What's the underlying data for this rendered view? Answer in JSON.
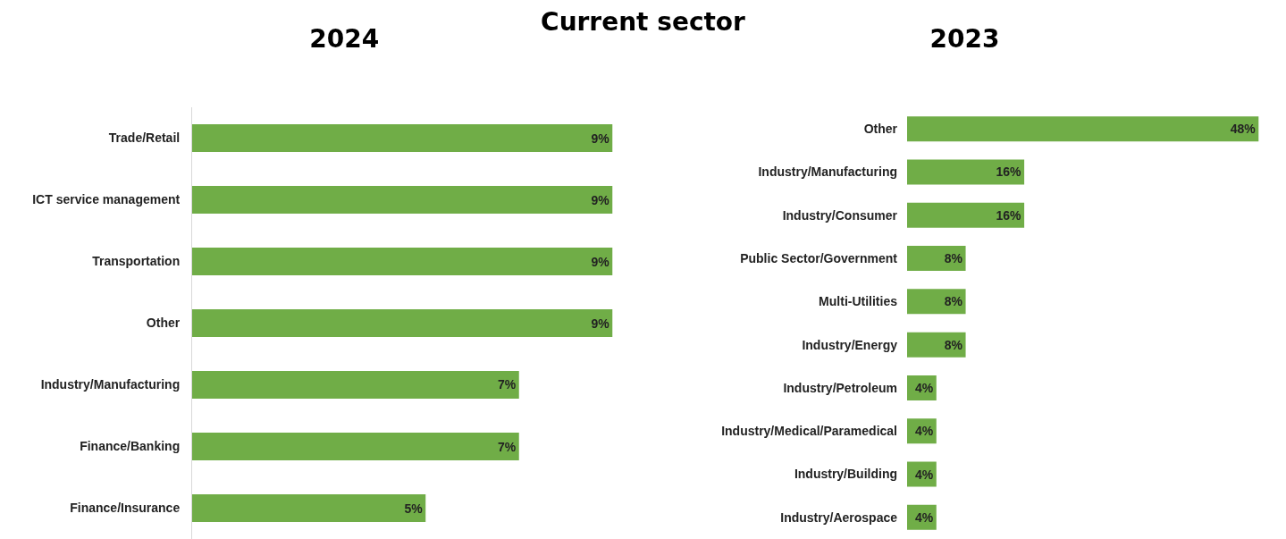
{
  "chart_data": [
    {
      "type": "bar",
      "orientation": "horizontal",
      "title": "2024",
      "annotations": [
        "Current sector"
      ],
      "categories": [
        "Trade/Retail",
        "ICT service management",
        "Transportation",
        "Other",
        "Industry/Manufacturing",
        "Finance/Banking",
        "Finance/Insurance"
      ],
      "values": [
        9,
        9,
        9,
        9,
        7,
        7,
        5
      ],
      "value_labels": [
        "9%",
        "9%",
        "9%",
        "9%",
        "7%",
        "7%",
        "5%"
      ],
      "color": "#70ad47",
      "grid": false,
      "legend": false,
      "tick_labels": "y"
    },
    {
      "type": "bar",
      "orientation": "horizontal",
      "title": "2023",
      "categories": [
        "Other",
        "Industry/Manufacturing",
        "Industry/Consumer",
        "Public Sector/Government",
        "Multi-Utilities",
        "Industry/Energy",
        "Industry/Petroleum",
        "Industry/Medical/Paramedical",
        "Industry/Building",
        "Industry/Aerospace"
      ],
      "values": [
        48,
        16,
        16,
        8,
        8,
        8,
        4,
        4,
        4,
        4
      ],
      "value_labels": [
        "48%",
        "16%",
        "16%",
        "8%",
        "8%",
        "8%",
        "4%",
        "4%",
        "4%",
        "4%"
      ],
      "color": "#70ad47",
      "grid": false,
      "legend": false,
      "tick_labels": "y"
    }
  ]
}
